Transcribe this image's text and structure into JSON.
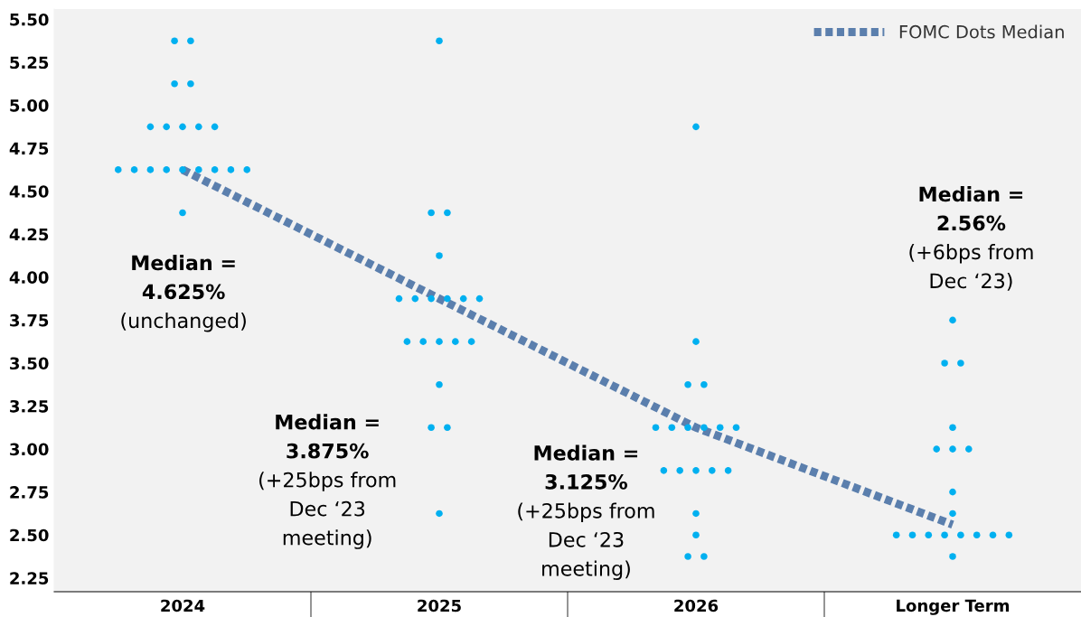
{
  "chart_data": {
    "type": "scatter",
    "categories": [
      "2024",
      "2025",
      "2026",
      "Longer Term"
    ],
    "series": [
      {
        "color": "#00b0f0",
        "marker": "circle",
        "values": [
          5.375,
          5.375,
          4.875,
          3.75
        ]
      },
      {
        "color": "#00b0f0",
        "marker": "circle",
        "values": [
          5.375,
          4.375,
          3.625,
          3.5
        ]
      },
      {
        "color": "#00b0f0",
        "marker": "circle",
        "values": [
          5.125,
          4.375,
          3.375,
          3.5
        ]
      },
      {
        "color": "#00b0f0",
        "marker": "circle",
        "values": [
          5.125,
          4.125,
          3.375,
          3.125
        ]
      },
      {
        "color": "#00b0f0",
        "marker": "circle",
        "values": [
          4.875,
          3.875,
          3.125,
          3.0
        ]
      },
      {
        "color": "#00b0f0",
        "marker": "circle",
        "values": [
          4.875,
          3.875,
          3.125,
          3.0
        ]
      },
      {
        "color": "#00b0f0",
        "marker": "circle",
        "values": [
          4.875,
          3.875,
          3.125,
          3.0
        ]
      },
      {
        "color": "#00b0f0",
        "marker": "circle",
        "values": [
          4.875,
          3.875,
          3.125,
          2.75
        ]
      },
      {
        "color": "#00b0f0",
        "marker": "circle",
        "values": [
          4.875,
          3.875,
          3.125,
          2.625
        ]
      },
      {
        "color": "#00b0f0",
        "marker": "circle",
        "values": [
          4.625,
          3.875,
          3.125,
          2.5
        ]
      },
      {
        "color": "#00b0f0",
        "marker": "circle",
        "values": [
          4.625,
          3.625,
          2.875,
          2.5
        ]
      },
      {
        "color": "#00b0f0",
        "marker": "circle",
        "values": [
          4.625,
          3.625,
          2.875,
          2.5
        ]
      },
      {
        "color": "#00b0f0",
        "marker": "circle",
        "values": [
          4.625,
          3.625,
          2.875,
          2.5
        ]
      },
      {
        "color": "#00b0f0",
        "marker": "circle",
        "values": [
          4.625,
          3.625,
          2.875,
          2.5
        ]
      },
      {
        "color": "#00b0f0",
        "marker": "circle",
        "values": [
          4.625,
          3.625,
          2.875,
          2.5
        ]
      },
      {
        "color": "#00b0f0",
        "marker": "circle",
        "values": [
          4.625,
          3.375,
          2.625,
          2.5
        ]
      },
      {
        "color": "#00b0f0",
        "marker": "circle",
        "values": [
          4.625,
          3.125,
          2.5,
          2.5
        ]
      },
      {
        "color": "#00b0f0",
        "marker": "circle",
        "values": [
          4.625,
          3.125,
          2.375,
          2.375
        ]
      },
      {
        "color": "#00b0f0",
        "marker": "circle",
        "values": [
          4.375,
          2.625,
          2.375,
          null
        ]
      },
      {
        "type": "line",
        "name": "FOMC Dots Median",
        "color": "#5b7fad",
        "line_style": "dotted",
        "values": [
          4.625,
          3.875,
          3.125,
          2.56
        ]
      }
    ],
    "ylim": [
      2.17,
      5.56
    ],
    "yticks": [
      {
        "value": 2.25,
        "label": "2.25"
      },
      {
        "value": 2.5,
        "label": "2.50"
      },
      {
        "value": 2.75,
        "label": "2.75"
      },
      {
        "value": 3.0,
        "label": "3.00"
      },
      {
        "value": 3.25,
        "label": "3.25"
      },
      {
        "value": 3.5,
        "label": "3.50"
      },
      {
        "value": 3.75,
        "label": "3.75"
      },
      {
        "value": 4.0,
        "label": "4.00"
      },
      {
        "value": 4.25,
        "label": "4.25"
      },
      {
        "value": 4.5,
        "label": "4.50"
      },
      {
        "value": 4.75,
        "label": "4.75"
      },
      {
        "value": 5.0,
        "label": "5.00"
      },
      {
        "value": 5.25,
        "label": "5.25"
      },
      {
        "value": 5.5,
        "label": "5.50"
      }
    ],
    "annotations": [
      "Median =\n4.625%\n(unchanged)",
      "Median =\n3.875%\n(+25bps from\nDec ‘23\nmeeting)",
      "Median =\n3.125%\n(+25bps from\nDec ‘23\nmeeting)",
      "Median =\n2.56%\n(+6bps from\nDec ‘23)"
    ],
    "grid": false,
    "legend": "top right"
  }
}
